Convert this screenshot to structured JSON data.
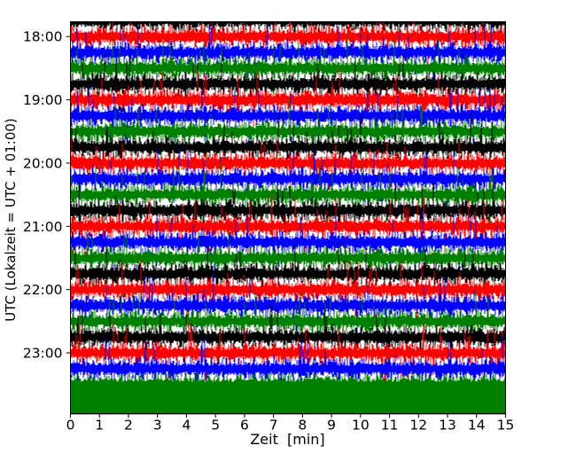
{
  "figure": {
    "background": "#ffffff",
    "xlabel": "Zeit  [min]",
    "ylabel": "UTC (Lokalzeit = UTC + 01:00)"
  },
  "chart_data": {
    "type": "line",
    "subtype": "helicorder-dayplot",
    "title": "",
    "xlabel": "Zeit  [min]",
    "ylabel": "UTC (Lokalzeit = UTC + 01:00)",
    "xlim": [
      0,
      15
    ],
    "x_ticks": [
      "0",
      "1",
      "2",
      "3",
      "4",
      "5",
      "6",
      "7",
      "8",
      "9",
      "10",
      "11",
      "12",
      "13",
      "14",
      "15"
    ],
    "y_ticks": [
      "18:00",
      "19:00",
      "20:00",
      "21:00",
      "22:00",
      "23:00"
    ],
    "minutes_per_row": 15,
    "color_cycle": [
      "#000000",
      "#ff0000",
      "#0000ff",
      "#008000"
    ],
    "axis_color": "#000000",
    "grid": false,
    "legend": false,
    "description": "Continuous seismogram-style dayplot: each row is 15 minutes of dense stochastic waveform, rows stacked top-to-bottom, colors cycling black/red/blue/green, hour tick labels aligned to red rows; bottom green row saturates solid to the x-axis.",
    "rows": [
      {
        "start": "17:45",
        "color": "#000000"
      },
      {
        "start": "18:00",
        "color": "#ff0000",
        "tick_label": "18:00"
      },
      {
        "start": "18:15",
        "color": "#0000ff"
      },
      {
        "start": "18:30",
        "color": "#008000"
      },
      {
        "start": "18:45",
        "color": "#000000"
      },
      {
        "start": "19:00",
        "color": "#ff0000",
        "tick_label": "19:00"
      },
      {
        "start": "19:15",
        "color": "#0000ff"
      },
      {
        "start": "19:30",
        "color": "#008000"
      },
      {
        "start": "19:45",
        "color": "#000000"
      },
      {
        "start": "20:00",
        "color": "#ff0000",
        "tick_label": "20:00"
      },
      {
        "start": "20:15",
        "color": "#0000ff"
      },
      {
        "start": "20:30",
        "color": "#008000"
      },
      {
        "start": "20:45",
        "color": "#000000"
      },
      {
        "start": "21:00",
        "color": "#ff0000",
        "tick_label": "21:00"
      },
      {
        "start": "21:15",
        "color": "#0000ff"
      },
      {
        "start": "21:30",
        "color": "#008000"
      },
      {
        "start": "21:45",
        "color": "#000000"
      },
      {
        "start": "22:00",
        "color": "#ff0000",
        "tick_label": "22:00"
      },
      {
        "start": "22:15",
        "color": "#0000ff"
      },
      {
        "start": "22:30",
        "color": "#008000"
      },
      {
        "start": "22:45",
        "color": "#000000"
      },
      {
        "start": "23:00",
        "color": "#ff0000",
        "tick_label": "23:00"
      },
      {
        "start": "23:15",
        "color": "#0000ff"
      },
      {
        "start": "23:30",
        "color": "#008000",
        "fill_to_bottom": true
      }
    ]
  }
}
